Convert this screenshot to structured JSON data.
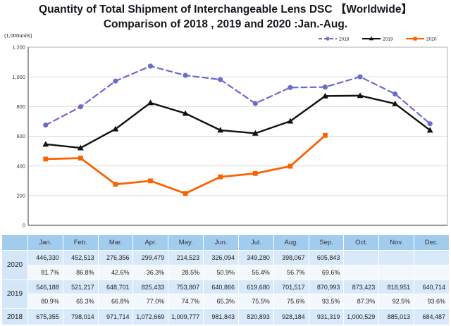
{
  "title": {
    "line1": "Quantity of Total Shipment of Interchangeable Lens DSC 【Worldwide】",
    "line2": "Comparison of 2018 , 2019 and 2020 :Jan.-Aug."
  },
  "chart_data": {
    "type": "line",
    "title": "Quantity of Total Shipment of Interchangeable Lens DSC 【Worldwide】 Comparison of 2018 , 2019 and 2020 :Jan.-Aug.",
    "ylabel": "(1,000units)",
    "xlabel": "",
    "ylim": [
      0,
      1200
    ],
    "ytick_values": [
      1200,
      1000,
      800,
      600,
      400,
      200,
      0
    ],
    "ytick_labels": [
      "1,200",
      "1,000",
      "800",
      "600",
      "400",
      "200",
      "0"
    ],
    "grid": true,
    "legend_position": "top-right",
    "categories": [
      "Jan.",
      "Feb.",
      "Mar.",
      "Apr.",
      "May.",
      "Jun.",
      "Jul.",
      "Aug.",
      "Sep.",
      "Oct.",
      "Nov.",
      "Dec."
    ],
    "series": [
      {
        "name": "2018",
        "color": "#6b6bce",
        "style": "dashed",
        "marker": "circle",
        "values": [
          675.355,
          798.014,
          971.714,
          1072.669,
          1009.777,
          981.843,
          820.893,
          928.184,
          931.319,
          1000.529,
          885.013,
          684.487
        ]
      },
      {
        "name": "2019",
        "color": "#111111",
        "style": "solid",
        "marker": "triangle",
        "values": [
          546.188,
          521.217,
          648.701,
          825.433,
          753.807,
          640.866,
          619.68,
          701.517,
          870.993,
          873.423,
          818.951,
          640.714
        ]
      },
      {
        "name": "2020",
        "color": "#f96302",
        "style": "solid",
        "marker": "square",
        "values": [
          446.33,
          452.513,
          276.356,
          299.479,
          214.523,
          326.094,
          349.28,
          398.067,
          605.843,
          null,
          null,
          null
        ]
      }
    ]
  },
  "table": {
    "months": [
      "Jan.",
      "Feb.",
      "Mar.",
      "Apr.",
      "May.",
      "Jun.",
      "Jul.",
      "Aug.",
      "Sep.",
      "Oct.",
      "Nov.",
      "Dec."
    ],
    "groups": [
      {
        "label": "2020",
        "values": [
          "446,330",
          "452,513",
          "276,356",
          "299,479",
          "214,523",
          "326,094",
          "349,280",
          "398,067",
          "605,843",
          "",
          "",
          ""
        ],
        "percents": [
          "81.7%",
          "86.8%",
          "42.6%",
          "36.3%",
          "28.5%",
          "50.9%",
          "56.4%",
          "56.7%",
          "69.6%",
          "",
          "",
          ""
        ]
      },
      {
        "label": "2019",
        "values": [
          "546,188",
          "521,217",
          "648,701",
          "825,433",
          "753,807",
          "640,866",
          "619,680",
          "701,517",
          "870,993",
          "873,423",
          "818,951",
          "640,714"
        ],
        "percents": [
          "80.9%",
          "65.3%",
          "66.8%",
          "77.0%",
          "74.7%",
          "65.3%",
          "75.5%",
          "75.6%",
          "93.5%",
          "87.3%",
          "92.5%",
          "93.6%"
        ]
      },
      {
        "label": "2018",
        "values": [
          "675,355",
          "798,014",
          "971,714",
          "1,072,669",
          "1,009,777",
          "981,843",
          "820,893",
          "928,184",
          "931,319",
          "1,000,529",
          "885,013",
          "684,487"
        ],
        "percents": null
      }
    ]
  },
  "colors": {
    "grid": "#dcdcdc",
    "axis_dark": "#5a5a5a",
    "axis_light": "#b2b2b2",
    "table_header_bg": "#a2ccee",
    "table_value_bg": "#d8eafa",
    "table_pct_bg": "#f2f8fc"
  }
}
